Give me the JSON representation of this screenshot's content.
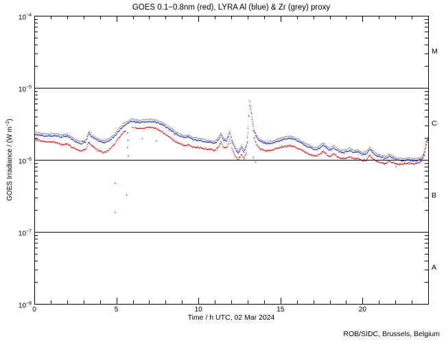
{
  "attribution": "ROB/SIDC, Brussels, Belgium",
  "chart_data": {
    "type": "scatter",
    "style": "dotted time series, log y-axis",
    "title": "GOES 0.1−0.8nm (red), LYRA Al (blue) & Zr (grey) proxy",
    "xlabel": "Time / h UTC, 02 Mar 2024",
    "ylabel": "GOES Irradiance / (W m⁻²)",
    "ylabel_parts": {
      "pre": "GOES Irradiance / (W m",
      "sup": "−2",
      "post": ")"
    },
    "xlim": [
      0,
      24
    ],
    "ylim_exponents": [
      -8,
      -4
    ],
    "yscale": "log",
    "x_major_ticks": [
      0,
      5,
      10,
      15,
      20
    ],
    "x_minor_step_hours": 1,
    "y_tick_exponents": [
      -4,
      -5,
      -6,
      -7,
      -8
    ],
    "class_boundary_lines": [
      1e-05,
      1e-06,
      1e-07
    ],
    "flare_classes": [
      {
        "label": "M",
        "range": [
          1e-05,
          0.0001
        ]
      },
      {
        "label": "C",
        "range": [
          1e-06,
          1e-05
        ]
      },
      {
        "label": "B",
        "range": [
          1e-07,
          1e-06
        ]
      },
      {
        "label": "A",
        "range": [
          1e-08,
          1e-07
        ]
      }
    ],
    "legend": "encoded in title: red = GOES 0.1-0.8nm, blue = LYRA Al proxy, grey = LYRA Zr proxy",
    "grid": false,
    "value_scale": 1e-06,
    "value_unit": "W m^-2",
    "x": [
      0.0,
      0.4,
      0.8,
      1.2,
      1.6,
      2.0,
      2.2,
      2.5,
      2.8,
      3.1,
      3.3,
      3.45,
      3.6,
      3.9,
      4.2,
      4.5,
      4.8,
      5.1,
      5.4,
      5.7,
      5.9,
      6.1,
      6.4,
      6.7,
      7.0,
      7.3,
      7.6,
      7.9,
      8.2,
      8.5,
      8.8,
      9.1,
      9.4,
      9.6,
      9.9,
      10.2,
      10.5,
      10.8,
      11.0,
      11.2,
      11.35,
      11.5,
      11.7,
      11.9,
      12.0,
      12.2,
      12.4,
      12.6,
      12.75,
      12.9,
      13.0,
      13.1,
      13.2,
      13.35,
      13.5,
      13.7,
      13.9,
      14.1,
      14.4,
      14.7,
      15.0,
      15.3,
      15.6,
      15.9,
      16.2,
      16.5,
      16.8,
      17.1,
      17.4,
      17.6,
      17.8,
      18.0,
      18.2,
      18.45,
      18.7,
      19.0,
      19.2,
      19.45,
      19.7,
      19.95,
      20.2,
      20.4,
      20.6,
      20.85,
      21.1,
      21.4,
      21.6,
      21.9,
      22.2,
      22.5,
      22.8,
      23.1,
      23.4,
      23.6,
      23.75,
      23.87,
      23.95
    ],
    "series": [
      {
        "name": "LYRA Zr proxy",
        "color": "#9a9a9a",
        "values": [
          2.46,
          2.35,
          2.3,
          2.35,
          2.25,
          2.3,
          2.14,
          1.93,
          1.82,
          1.9,
          2.57,
          2.3,
          2.14,
          1.98,
          1.87,
          1.98,
          2.25,
          2.68,
          3.21,
          3.53,
          3.75,
          3.64,
          3.58,
          3.64,
          3.69,
          3.64,
          3.48,
          3.21,
          2.89,
          2.57,
          2.35,
          2.19,
          2.25,
          2.09,
          2.03,
          1.98,
          1.9,
          1.87,
          1.84,
          2.09,
          2.41,
          2.03,
          1.98,
          2.62,
          2.03,
          1.55,
          1.34,
          1.61,
          1.39,
          1.66,
          3.0,
          6.2,
          4.92,
          2.78,
          2.25,
          1.98,
          1.87,
          1.82,
          1.84,
          1.93,
          2.03,
          2.12,
          2.16,
          2.05,
          1.87,
          1.71,
          1.58,
          1.5,
          1.61,
          1.77,
          1.55,
          1.48,
          1.61,
          1.48,
          1.37,
          1.41,
          1.48,
          1.37,
          1.39,
          1.28,
          1.31,
          1.52,
          1.37,
          1.23,
          1.18,
          1.13,
          1.22,
          1.11,
          1.07,
          1.06,
          1.08,
          1.05,
          1.07,
          1.13,
          1.39,
          1.93,
          2.09
        ]
      },
      {
        "name": "LYRA Al proxy",
        "color": "#2233cc",
        "values": [
          2.3,
          2.2,
          2.15,
          2.2,
          2.1,
          2.15,
          2.0,
          1.8,
          1.7,
          1.78,
          2.4,
          2.15,
          2.0,
          1.85,
          1.75,
          1.85,
          2.1,
          2.5,
          3.0,
          3.3,
          3.5,
          3.4,
          3.35,
          3.4,
          3.45,
          3.4,
          3.25,
          3.0,
          2.7,
          2.4,
          2.2,
          2.05,
          2.1,
          1.95,
          1.9,
          1.85,
          1.78,
          1.75,
          1.72,
          1.95,
          2.25,
          1.9,
          1.85,
          2.45,
          1.9,
          1.45,
          1.25,
          1.5,
          1.3,
          1.55,
          2.8,
          5.8,
          4.6,
          2.6,
          2.1,
          1.85,
          1.75,
          1.7,
          1.72,
          1.8,
          1.9,
          1.98,
          2.02,
          1.92,
          1.75,
          1.6,
          1.48,
          1.4,
          1.5,
          1.65,
          1.45,
          1.38,
          1.5,
          1.38,
          1.28,
          1.32,
          1.38,
          1.28,
          1.3,
          1.2,
          1.22,
          1.42,
          1.28,
          1.15,
          1.1,
          1.06,
          1.14,
          1.04,
          1.0,
          0.99,
          1.01,
          0.98,
          1.0,
          1.06,
          1.3,
          1.8,
          1.95
        ]
      },
      {
        "name": "GOES 0.1-0.8nm",
        "color": "#dd1111",
        "gaps": [
          [
            5.5,
            6.1
          ]
        ],
        "values": [
          1.95,
          1.85,
          1.78,
          1.8,
          1.65,
          1.68,
          1.55,
          1.42,
          1.35,
          1.42,
          1.8,
          1.6,
          1.5,
          1.38,
          1.27,
          1.38,
          1.6,
          2.0,
          2.45,
          2.7,
          2.9,
          2.85,
          2.75,
          2.8,
          2.9,
          2.8,
          2.6,
          2.35,
          2.1,
          1.85,
          1.7,
          1.6,
          1.65,
          1.52,
          1.5,
          1.48,
          1.42,
          1.4,
          1.38,
          1.55,
          1.8,
          1.5,
          1.48,
          1.95,
          1.5,
          1.15,
          1.02,
          1.2,
          1.05,
          1.25,
          2.4,
          6.8,
          4.5,
          2.1,
          1.65,
          1.48,
          1.4,
          1.35,
          1.38,
          1.45,
          1.52,
          1.57,
          1.6,
          1.52,
          1.4,
          1.28,
          1.2,
          1.14,
          1.22,
          1.35,
          1.18,
          1.12,
          1.25,
          1.12,
          1.05,
          1.08,
          1.12,
          1.05,
          1.06,
          0.99,
          1.0,
          1.18,
          1.05,
          0.96,
          0.93,
          0.9,
          0.97,
          0.9,
          0.88,
          0.9,
          0.92,
          0.89,
          0.93,
          0.99,
          1.2,
          1.65,
          1.9
        ]
      }
    ],
    "stray_points": [
      {
        "color": "#dd1111",
        "points": [
          [
            4.9,
            0.48
          ],
          [
            5.6,
            0.33
          ],
          [
            4.9,
            0.19
          ],
          [
            5.65,
            2.4
          ],
          [
            5.68,
            1.9
          ],
          [
            5.65,
            1.5
          ],
          [
            5.7,
            1.15
          ],
          [
            6.55,
            2.0
          ],
          [
            7.4,
            1.85
          ],
          [
            13.3,
            1.1
          ],
          [
            13.45,
            0.95
          ],
          [
            12.95,
            1.8
          ]
        ]
      },
      {
        "color": "#2233cc",
        "points": [
          [
            22.0,
            0.82
          ],
          [
            21.3,
            0.88
          ]
        ]
      }
    ]
  }
}
